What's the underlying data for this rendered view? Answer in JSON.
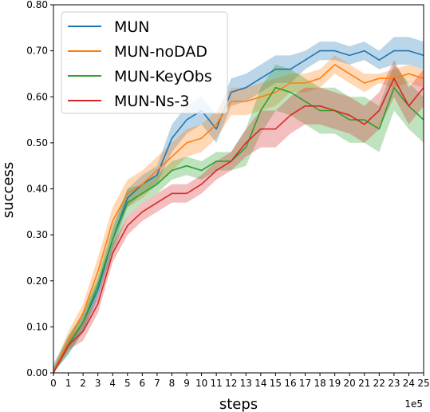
{
  "chart_data": {
    "type": "line",
    "xlabel": "steps",
    "ylabel": "success",
    "x_offset_label": "1e5",
    "xlim": [
      0,
      25
    ],
    "ylim": [
      0,
      0.8
    ],
    "x_ticks": [
      0,
      1,
      2,
      3,
      4,
      5,
      6,
      7,
      8,
      9,
      10,
      11,
      12,
      13,
      14,
      15,
      16,
      17,
      18,
      19,
      20,
      21,
      22,
      23,
      24,
      25
    ],
    "x_tick_labels": [
      "0",
      "1",
      "2",
      "3",
      "4",
      "5",
      "6",
      "7",
      "8",
      "9",
      "10",
      "11",
      "12",
      "13",
      "14",
      "15",
      "16",
      "17",
      "18",
      "19",
      "20",
      "21",
      "22",
      "23",
      "24",
      "25"
    ],
    "y_ticks": [
      0,
      0.1,
      0.2,
      0.3,
      0.4,
      0.5,
      0.6,
      0.7,
      0.8
    ],
    "y_tick_labels": [
      "0.00",
      "0.10",
      "0.20",
      "0.30",
      "0.40",
      "0.50",
      "0.60",
      "0.70",
      "0.80"
    ],
    "grid": false,
    "legend_position": "top-left",
    "x": [
      0,
      1,
      2,
      3,
      4,
      5,
      6,
      7,
      8,
      9,
      10,
      11,
      12,
      13,
      14,
      15,
      16,
      17,
      18,
      19,
      20,
      21,
      22,
      23,
      24,
      25
    ],
    "series": [
      {
        "name": "MUN",
        "color": "#1f77b4",
        "values": [
          0.0,
          0.06,
          0.11,
          0.18,
          0.29,
          0.38,
          0.41,
          0.43,
          0.51,
          0.55,
          0.57,
          0.53,
          0.61,
          0.62,
          0.64,
          0.66,
          0.66,
          0.68,
          0.7,
          0.7,
          0.69,
          0.7,
          0.68,
          0.7,
          0.7,
          0.69
        ],
        "band": [
          0.02,
          0.02,
          0.02,
          0.02,
          0.02,
          0.02,
          0.02,
          0.02,
          0.03,
          0.03,
          0.03,
          0.03,
          0.03,
          0.03,
          0.03,
          0.03,
          0.03,
          0.02,
          0.02,
          0.02,
          0.02,
          0.02,
          0.02,
          0.03,
          0.03,
          0.03
        ]
      },
      {
        "name": "MUN-noDAD",
        "color": "#ff7f0e",
        "values": [
          0.0,
          0.07,
          0.13,
          0.22,
          0.33,
          0.39,
          0.41,
          0.44,
          0.47,
          0.5,
          0.51,
          0.54,
          0.59,
          0.59,
          0.6,
          0.61,
          0.63,
          0.63,
          0.64,
          0.67,
          0.65,
          0.63,
          0.64,
          0.64,
          0.65,
          0.64
        ],
        "band": [
          0.01,
          0.02,
          0.02,
          0.03,
          0.03,
          0.03,
          0.03,
          0.03,
          0.03,
          0.03,
          0.03,
          0.03,
          0.03,
          0.03,
          0.03,
          0.03,
          0.02,
          0.02,
          0.02,
          0.02,
          0.02,
          0.02,
          0.01,
          0.02,
          0.02,
          0.02
        ]
      },
      {
        "name": "MUN-KeyObs",
        "color": "#2ca02c",
        "values": [
          0.0,
          0.06,
          0.11,
          0.19,
          0.29,
          0.37,
          0.39,
          0.41,
          0.44,
          0.45,
          0.44,
          0.46,
          0.46,
          0.49,
          0.57,
          0.62,
          0.61,
          0.59,
          0.57,
          0.57,
          0.55,
          0.55,
          0.53,
          0.62,
          0.58,
          0.55
        ],
        "band": [
          0.01,
          0.02,
          0.02,
          0.02,
          0.03,
          0.03,
          0.02,
          0.02,
          0.02,
          0.02,
          0.02,
          0.02,
          0.02,
          0.04,
          0.05,
          0.05,
          0.05,
          0.05,
          0.05,
          0.05,
          0.05,
          0.05,
          0.05,
          0.05,
          0.05,
          0.05
        ]
      },
      {
        "name": "MUN-Ns-3",
        "color": "#d62728",
        "values": [
          0.0,
          0.06,
          0.09,
          0.15,
          0.26,
          0.32,
          0.35,
          0.37,
          0.39,
          0.39,
          0.41,
          0.44,
          0.46,
          0.5,
          0.53,
          0.53,
          0.56,
          0.58,
          0.58,
          0.57,
          0.56,
          0.54,
          0.57,
          0.64,
          0.58,
          0.62
        ],
        "band": [
          0.01,
          0.01,
          0.02,
          0.02,
          0.02,
          0.02,
          0.02,
          0.02,
          0.02,
          0.02,
          0.02,
          0.02,
          0.02,
          0.03,
          0.04,
          0.04,
          0.04,
          0.04,
          0.04,
          0.04,
          0.04,
          0.04,
          0.04,
          0.04,
          0.04,
          0.04
        ]
      }
    ]
  }
}
